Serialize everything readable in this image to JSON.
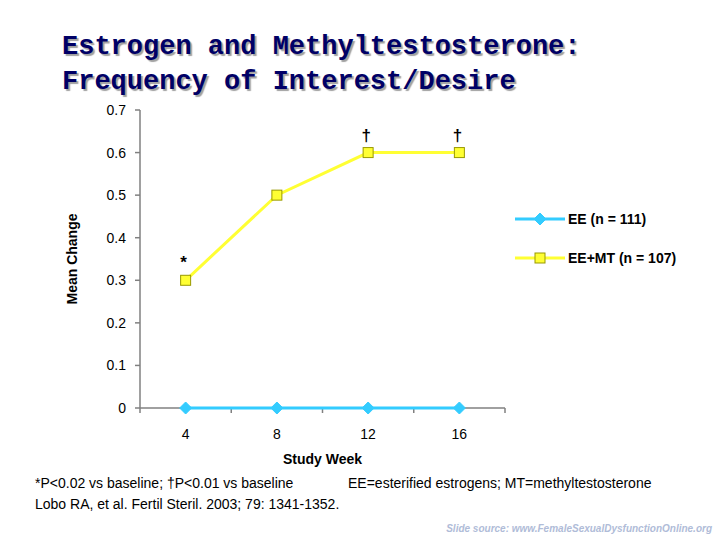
{
  "chart_data": {
    "type": "line",
    "title": "Estrogen and Methyltestosterone: Frequency of Interest/Desire",
    "x_label": "Study Week",
    "y_label": "Mean Change",
    "categories": [
      "4",
      "8",
      "12",
      "16"
    ],
    "series": [
      {
        "name": "EE (n = 111)",
        "color": "#33ccff",
        "marker": "diamond",
        "line_style": "solid",
        "values": [
          0,
          0,
          0,
          0
        ]
      },
      {
        "name": "EE+MT (n = 107)",
        "color": "#ffff33",
        "marker": "square",
        "line_style": "solid",
        "values": [
          0.3,
          0.5,
          0.6,
          0.6
        ]
      }
    ],
    "ylim": [
      0,
      0.7
    ],
    "yticks": [
      0,
      0.1,
      0.2,
      0.3,
      0.4,
      0.5,
      0.6,
      0.7
    ],
    "grid": false,
    "legend": "right",
    "annotations": [
      {
        "text": "*",
        "series": "EE+MT (n = 107)",
        "category": "4"
      },
      {
        "text": "†",
        "series": "EE+MT (n = 107)",
        "category": "12"
      },
      {
        "text": "†",
        "series": "EE+MT (n = 107)",
        "category": "16"
      }
    ],
    "footnotes": [
      "*P<0.02 vs baseline; †P<0.01 vs baseline",
      "EE=esterified estrogens; MT=methyltestosterone",
      "Lobo RA, et al. Fertil Steril. 2003; 79: 1341-1352."
    ],
    "source": "Slide source: www.FemaleSexualDysfunctionOnline.org"
  }
}
